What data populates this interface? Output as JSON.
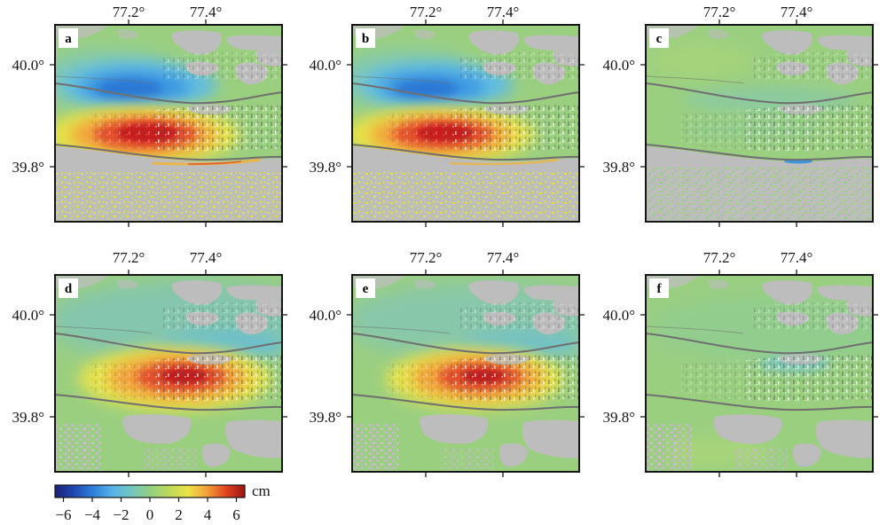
{
  "figure": {
    "panels": [
      {
        "label": "a",
        "lon_ticks": [
          "77.2°",
          "77.4°"
        ],
        "lat_ticks": [
          "40.0°",
          "39.8°"
        ]
      },
      {
        "label": "b",
        "lon_ticks": [
          "77.2°",
          "77.4°"
        ],
        "lat_ticks": [
          "40.0°",
          "39.8°"
        ]
      },
      {
        "label": "c",
        "lon_ticks": [
          "77.2°",
          "77.4°"
        ],
        "lat_ticks": [
          "40.0°",
          "39.8°"
        ]
      },
      {
        "label": "d",
        "lon_ticks": [
          "77.2°",
          "77.4°"
        ],
        "lat_ticks": [
          "40.0°",
          "39.8°"
        ]
      },
      {
        "label": "e",
        "lon_ticks": [
          "77.2°",
          "77.4°"
        ],
        "lat_ticks": [
          "40.0°",
          "39.8°"
        ]
      },
      {
        "label": "f",
        "lon_ticks": [
          "77.2°",
          "77.4°"
        ],
        "lat_ticks": [
          "40.0°",
          "39.8°"
        ]
      }
    ],
    "colorbar": {
      "unit": "cm",
      "ticks": [
        "−6",
        "−4",
        "−2",
        "0",
        "2",
        "4",
        "6"
      ],
      "colors": [
        "#1a2378",
        "#1f48b0",
        "#2e7fd8",
        "#55b2e6",
        "#72c6c2",
        "#93cf82",
        "#bcd95c",
        "#ece246",
        "#f4a03a",
        "#e0441f",
        "#9a1515"
      ]
    }
  }
}
